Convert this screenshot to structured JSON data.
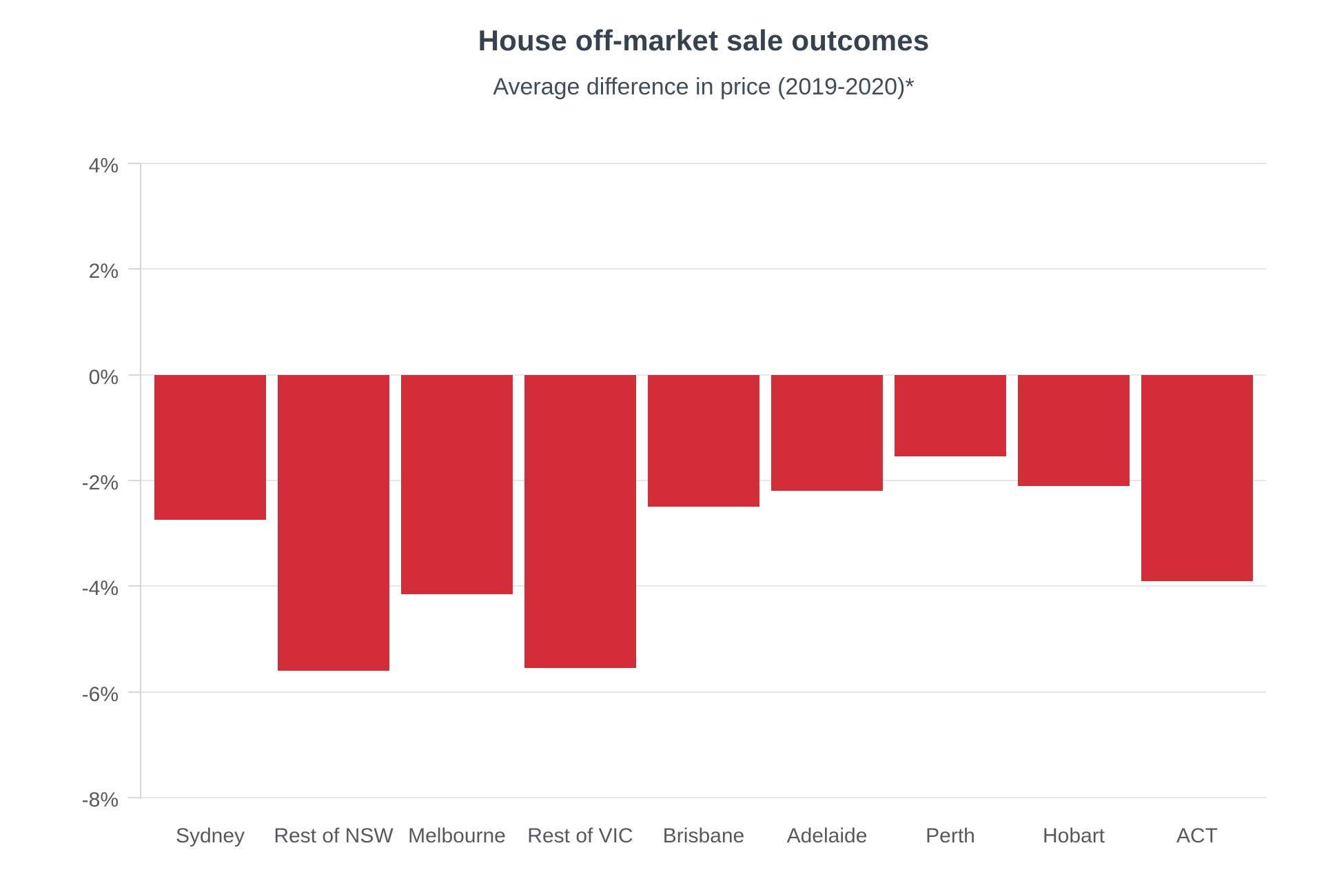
{
  "chart_data": {
    "type": "bar",
    "title": "House off-market sale outcomes",
    "subtitle": "Average difference in price (2019-2020)*",
    "categories": [
      "Sydney",
      "Rest of NSW",
      "Melbourne",
      "Rest of VIC",
      "Brisbane",
      "Adelaide",
      "Perth",
      "Hobart",
      "ACT"
    ],
    "values": [
      -2.75,
      -5.6,
      -4.15,
      -5.55,
      -2.5,
      -2.2,
      -1.55,
      -2.1,
      -3.9
    ],
    "unit": "%",
    "xlabel": "",
    "ylabel": "",
    "ylim": [
      -8,
      4
    ],
    "y_tick_values": [
      4,
      2,
      0,
      -2,
      -4,
      -6,
      -8
    ],
    "y_tick_labels": [
      "4%",
      "2%",
      "0%",
      "-2%",
      "-4%",
      "-6%",
      "-8%"
    ],
    "grid": true,
    "legend": false,
    "bar_color": "#d22d38",
    "colors": {
      "grid_line": "#e6e6e6",
      "axis_line": "#d7d7d7",
      "title_text": "#36424e",
      "subtitle_text": "#414e58",
      "axis_label_text": "#58595b",
      "background": "#ffffff"
    }
  }
}
